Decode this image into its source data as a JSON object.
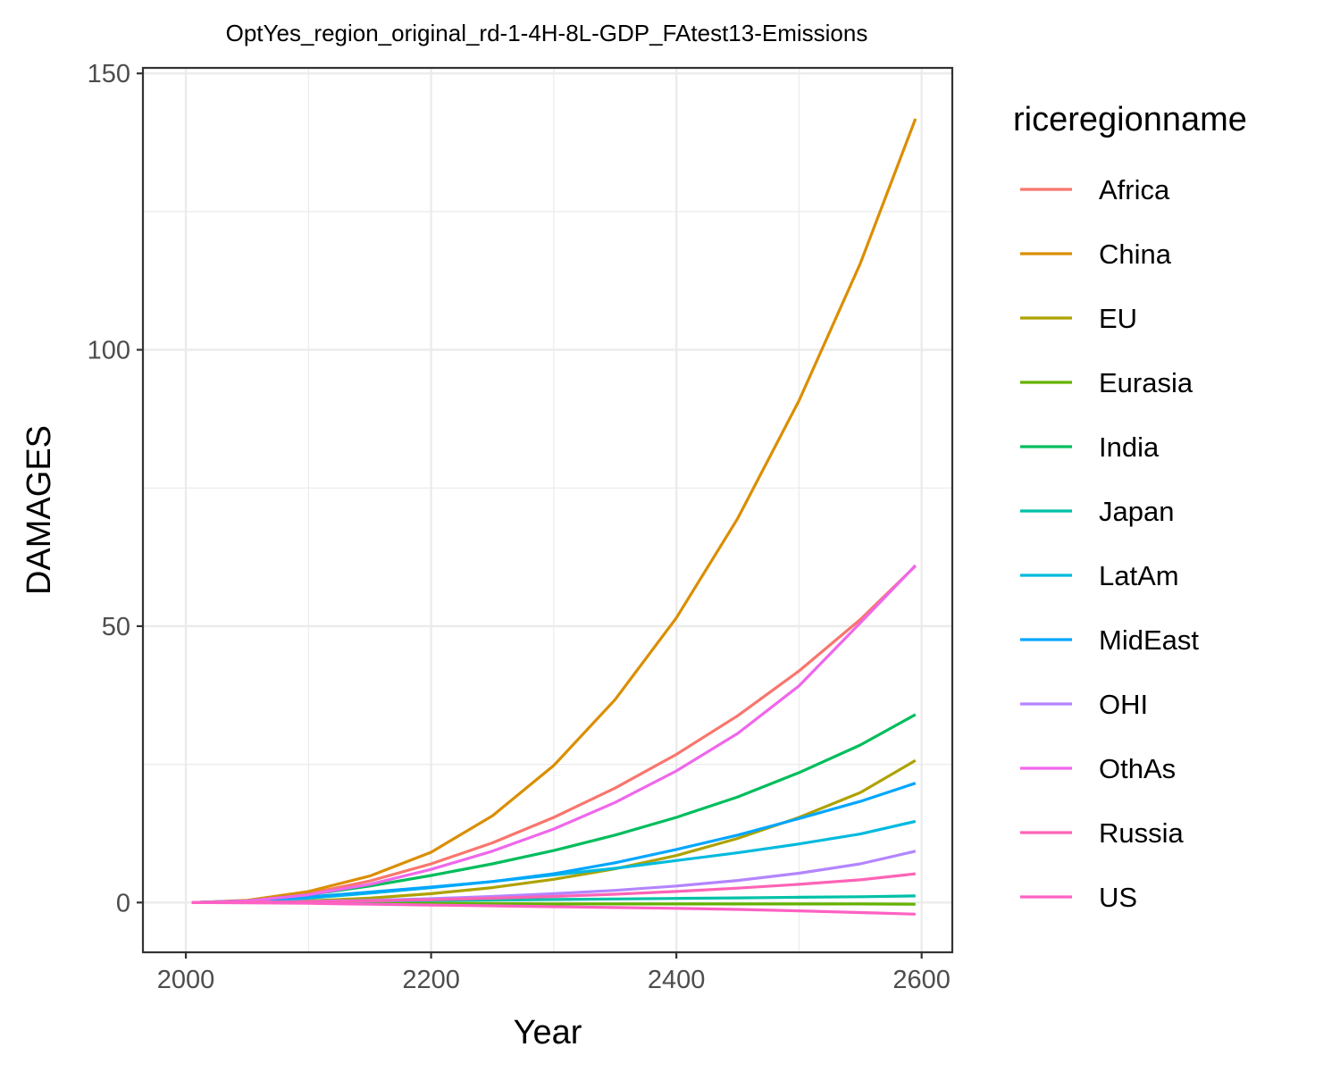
{
  "chart_data": {
    "type": "line",
    "title": "OptYes_region_original_rd-1-4H-8L-GDP_FAtest13-Emissions",
    "xlabel": "Year",
    "ylabel": "DAMAGES",
    "xlim": [
      1965,
      2625
    ],
    "ylim": [
      -9,
      151
    ],
    "x_ticks": [
      2000,
      2200,
      2400,
      2600
    ],
    "y_ticks": [
      0,
      50,
      100,
      150
    ],
    "x_minor": [
      2100,
      2300,
      2500
    ],
    "y_minor": [
      25,
      75,
      125
    ],
    "grid": true,
    "legend": {
      "title": "riceregionname",
      "position": "right"
    },
    "x": [
      2005,
      2050,
      2100,
      2150,
      2200,
      2250,
      2300,
      2350,
      2400,
      2450,
      2500,
      2550,
      2595
    ],
    "series": [
      {
        "name": "Africa",
        "color": "#F8766D",
        "values": [
          0,
          0.3,
          1.6,
          3.9,
          7.0,
          10.8,
          15.4,
          20.7,
          26.8,
          33.8,
          41.9,
          51.2,
          60.9
        ]
      },
      {
        "name": "China",
        "color": "#DB8E00",
        "values": [
          0,
          0.4,
          2.0,
          4.8,
          9.1,
          15.7,
          24.8,
          36.7,
          51.5,
          69.5,
          90.8,
          115.6,
          141.8
        ]
      },
      {
        "name": "EU",
        "color": "#AEA200",
        "values": [
          0,
          0.05,
          0.3,
          0.8,
          1.6,
          2.7,
          4.2,
          6.1,
          8.5,
          11.6,
          15.4,
          19.9,
          25.7
        ]
      },
      {
        "name": "Eurasia",
        "color": "#64B200",
        "values": [
          0,
          0,
          -0.05,
          -0.1,
          -0.15,
          -0.2,
          -0.25,
          -0.25,
          -0.25,
          -0.25,
          -0.25,
          -0.25,
          -0.3
        ]
      },
      {
        "name": "India",
        "color": "#00BD5C",
        "values": [
          0,
          0.3,
          1.4,
          3.0,
          4.9,
          7.0,
          9.4,
          12.2,
          15.4,
          19.1,
          23.5,
          28.5,
          34.0
        ]
      },
      {
        "name": "Japan",
        "color": "#00C1A7",
        "values": [
          0,
          0.05,
          0.15,
          0.25,
          0.35,
          0.45,
          0.55,
          0.65,
          0.75,
          0.85,
          0.95,
          1.05,
          1.2
        ]
      },
      {
        "name": "LatAm",
        "color": "#00BADE",
        "values": [
          0,
          0.2,
          0.8,
          1.7,
          2.7,
          3.8,
          5.0,
          6.2,
          7.6,
          9.0,
          10.6,
          12.4,
          14.7
        ]
      },
      {
        "name": "MidEast",
        "color": "#00A6FF",
        "values": [
          0,
          0.3,
          1.0,
          1.9,
          2.8,
          3.8,
          5.2,
          7.2,
          9.6,
          12.2,
          15.2,
          18.3,
          21.6
        ]
      },
      {
        "name": "OHI",
        "color": "#B385FF",
        "values": [
          0,
          0.05,
          0.2,
          0.4,
          0.7,
          1.1,
          1.6,
          2.2,
          3.0,
          4.0,
          5.3,
          7.0,
          9.3
        ]
      },
      {
        "name": "OthAs",
        "color": "#EF67EB",
        "values": [
          0,
          0.3,
          1.4,
          3.3,
          6.0,
          9.3,
          13.3,
          18.1,
          23.8,
          30.6,
          39.2,
          50.6,
          61.0
        ]
      },
      {
        "name": "Russia",
        "color": "#FF63B6",
        "values": [
          0,
          0.05,
          0.15,
          0.3,
          0.5,
          0.8,
          1.1,
          1.5,
          2.0,
          2.6,
          3.3,
          4.1,
          5.2
        ]
      },
      {
        "name": "US",
        "color": "#FF61C3",
        "values": [
          0,
          -0.05,
          -0.15,
          -0.3,
          -0.45,
          -0.6,
          -0.75,
          -0.9,
          -1.05,
          -1.25,
          -1.5,
          -1.8,
          -2.1
        ]
      }
    ]
  }
}
